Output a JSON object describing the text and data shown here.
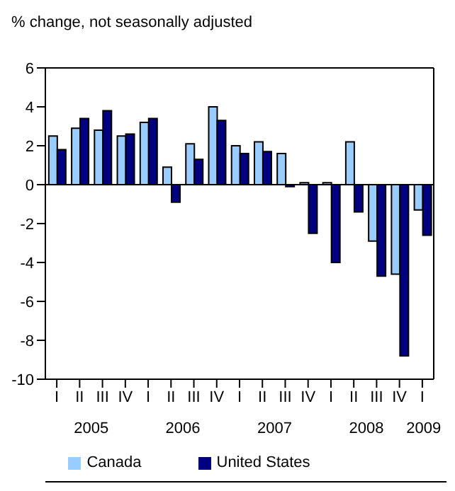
{
  "chart_data": {
    "type": "bar",
    "ylabel": "% change, not seasonally adjusted",
    "categories": [
      "I",
      "II",
      "III",
      "IV",
      "I",
      "II",
      "III",
      "IV",
      "I",
      "II",
      "III",
      "IV",
      "I",
      "II",
      "III",
      "IV",
      "I"
    ],
    "series": [
      {
        "name": "Canada",
        "color": "#99ccff",
        "values": [
          2.5,
          2.9,
          2.8,
          2.5,
          3.2,
          0.9,
          2.1,
          4.0,
          2.0,
          2.2,
          1.6,
          0.1,
          0.1,
          2.2,
          -2.9,
          -4.6,
          -1.3
        ]
      },
      {
        "name": "United States",
        "color": "#000080",
        "values": [
          1.8,
          3.4,
          3.8,
          2.6,
          3.4,
          -0.9,
          1.3,
          3.3,
          1.6,
          1.7,
          -0.1,
          -2.5,
          -4.0,
          -1.4,
          -4.7,
          -8.8,
          -2.6
        ]
      }
    ],
    "annotations": [
      "2005",
      "2006",
      "2007",
      "2008",
      "2009"
    ],
    "ylim": [
      -10,
      6
    ],
    "yticks": [
      -10,
      -8,
      -6,
      -4,
      -2,
      0,
      2,
      4,
      6
    ],
    "legend": "bottom"
  }
}
